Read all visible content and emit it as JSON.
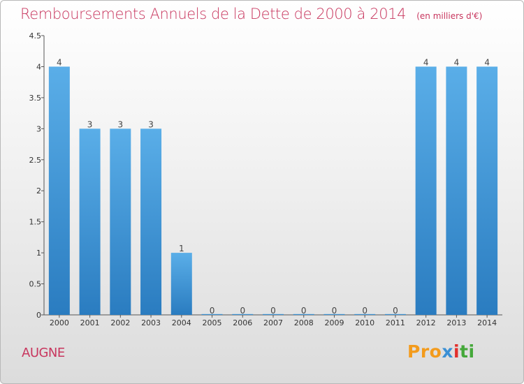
{
  "title": "Remboursements Annuels de la Dette de 2000 à 2014",
  "unit_note": "(en milliers d'€)",
  "place": "AUGNE",
  "logo": {
    "text": "Proxiti",
    "parts": [
      "Pro",
      "x",
      "i",
      "ti"
    ]
  },
  "colors": {
    "title": "#c8365e",
    "bar_top": "#5aaee8",
    "bar_bottom": "#2a7cc0"
  },
  "chart_data": {
    "type": "bar",
    "categories": [
      "2000",
      "2001",
      "2002",
      "2003",
      "2004",
      "2005",
      "2006",
      "2007",
      "2008",
      "2009",
      "2010",
      "2011",
      "2012",
      "2013",
      "2014"
    ],
    "values": [
      4,
      3,
      3,
      3,
      1,
      0,
      0,
      0,
      0,
      0,
      0,
      0,
      4,
      4,
      4
    ],
    "data_labels": [
      "4",
      "3",
      "3",
      "3",
      "1",
      "0",
      "0",
      "0",
      "0",
      "0",
      "0",
      "0",
      "4",
      "4",
      "4"
    ],
    "yticks": [
      "0",
      "0.5",
      "1",
      "1.5",
      "2",
      "2.5",
      "3",
      "3.5",
      "4",
      "4.5"
    ],
    "ylim": [
      0,
      4.5
    ],
    "grid": false,
    "legend": "none"
  }
}
